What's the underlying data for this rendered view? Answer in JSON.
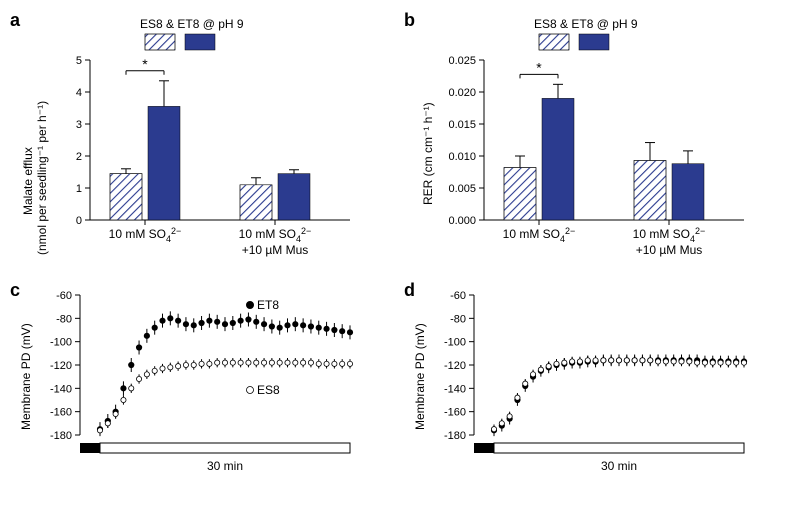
{
  "panels": {
    "a": {
      "label": "a",
      "legend_title": "ES8 & ET8 @ pH 9",
      "ylabel_line1": "Malate efflux",
      "ylabel_line2": "(nmol per seedling⁻¹ per h⁻¹)",
      "ymax": 5,
      "ytick_step": 1,
      "groups": [
        {
          "label_l1": "10 mM SO",
          "label_sub": "4",
          "label_sup": "2−",
          "es8": {
            "value": 1.45,
            "err": 0.15
          },
          "et8": {
            "value": 3.55,
            "err": 0.8
          },
          "sig": true
        },
        {
          "label_l1": "10 mM SO",
          "label_sub": "4",
          "label_sup": "2−",
          "label_l2": "+10 µM Mus",
          "es8": {
            "value": 1.1,
            "err": 0.22
          },
          "et8": {
            "value": 1.45,
            "err": 0.12
          },
          "sig": false
        }
      ],
      "colors": {
        "solid": "#2b3b8f",
        "hatch_stroke": "#2b3b8f"
      }
    },
    "b": {
      "label": "b",
      "legend_title": "ES8 & ET8 @ pH 9",
      "ylabel": "RER (cm cm⁻¹ h⁻¹)",
      "ymax": 0.025,
      "ytick_step": 0.005,
      "groups": [
        {
          "label_l1": "10 mM SO",
          "label_sub": "4",
          "label_sup": "2−",
          "es8": {
            "value": 0.0082,
            "err": 0.0018
          },
          "et8": {
            "value": 0.019,
            "err": 0.0022
          },
          "sig": true
        },
        {
          "label_l1": "10 mM SO",
          "label_sub": "4",
          "label_sup": "2−",
          "label_l2": "+10 µM Mus",
          "es8": {
            "value": 0.0093,
            "err": 0.0028
          },
          "et8": {
            "value": 0.0088,
            "err": 0.002
          },
          "sig": false
        }
      ]
    },
    "c": {
      "label": "c",
      "ylabel": "Membrane PD (mV)",
      "ylim": [
        -180,
        -60
      ],
      "ytick_step": 20,
      "xlabel": "30 min",
      "et8_label": "ET8",
      "es8_label": "ES8",
      "et8_marker": "filled",
      "es8_marker": "open",
      "et8": [
        [
          -2,
          -175
        ],
        [
          -1,
          -168
        ],
        [
          0,
          -160
        ],
        [
          1,
          -140
        ],
        [
          2,
          -120
        ],
        [
          3,
          -105
        ],
        [
          4,
          -95
        ],
        [
          5,
          -88
        ],
        [
          6,
          -82
        ],
        [
          7,
          -80
        ],
        [
          8,
          -82
        ],
        [
          9,
          -85
        ],
        [
          10,
          -86
        ],
        [
          11,
          -84
        ],
        [
          12,
          -82
        ],
        [
          13,
          -83
        ],
        [
          14,
          -85
        ],
        [
          15,
          -84
        ],
        [
          16,
          -82
        ],
        [
          17,
          -81
        ],
        [
          18,
          -83
        ],
        [
          19,
          -85
        ],
        [
          20,
          -87
        ],
        [
          21,
          -88
        ],
        [
          22,
          -86
        ],
        [
          23,
          -85
        ],
        [
          24,
          -86
        ],
        [
          25,
          -87
        ],
        [
          26,
          -88
        ],
        [
          27,
          -89
        ],
        [
          28,
          -90
        ],
        [
          29,
          -91
        ],
        [
          30,
          -92
        ]
      ],
      "et8_err": 6,
      "es8": [
        [
          -2,
          -176
        ],
        [
          -1,
          -170
        ],
        [
          0,
          -162
        ],
        [
          1,
          -150
        ],
        [
          2,
          -140
        ],
        [
          3,
          -132
        ],
        [
          4,
          -128
        ],
        [
          5,
          -125
        ],
        [
          6,
          -123
        ],
        [
          7,
          -122
        ],
        [
          8,
          -121
        ],
        [
          9,
          -120
        ],
        [
          10,
          -120
        ],
        [
          11,
          -119
        ],
        [
          12,
          -119
        ],
        [
          13,
          -118
        ],
        [
          14,
          -118
        ],
        [
          15,
          -118
        ],
        [
          16,
          -118
        ],
        [
          17,
          -118
        ],
        [
          18,
          -118
        ],
        [
          19,
          -118
        ],
        [
          20,
          -118
        ],
        [
          21,
          -118
        ],
        [
          22,
          -118
        ],
        [
          23,
          -118
        ],
        [
          24,
          -118
        ],
        [
          25,
          -118
        ],
        [
          26,
          -119
        ],
        [
          27,
          -119
        ],
        [
          28,
          -119
        ],
        [
          29,
          -119
        ],
        [
          30,
          -119
        ]
      ],
      "es8_err": 4
    },
    "d": {
      "label": "d",
      "ylabel": "Membrane PD (mV)",
      "ylim": [
        -180,
        -60
      ],
      "ytick_step": 20,
      "xlabel": "30 min",
      "et8": [
        [
          -2,
          -176
        ],
        [
          -1,
          -172
        ],
        [
          0,
          -166
        ],
        [
          1,
          -150
        ],
        [
          2,
          -138
        ],
        [
          3,
          -130
        ],
        [
          4,
          -125
        ],
        [
          5,
          -122
        ],
        [
          6,
          -120
        ],
        [
          7,
          -119
        ],
        [
          8,
          -118
        ],
        [
          9,
          -118
        ],
        [
          10,
          -117
        ],
        [
          11,
          -117
        ],
        [
          12,
          -116
        ],
        [
          13,
          -116
        ],
        [
          14,
          -116
        ],
        [
          15,
          -116
        ],
        [
          16,
          -116
        ],
        [
          17,
          -116
        ],
        [
          18,
          -116
        ],
        [
          19,
          -116
        ],
        [
          20,
          -116
        ],
        [
          21,
          -116
        ],
        [
          22,
          -116
        ],
        [
          23,
          -116
        ],
        [
          24,
          -116
        ],
        [
          25,
          -117
        ],
        [
          26,
          -117
        ],
        [
          27,
          -117
        ],
        [
          28,
          -117
        ],
        [
          29,
          -117
        ],
        [
          30,
          -117
        ]
      ],
      "et8_err": 5,
      "es8": [
        [
          -2,
          -175
        ],
        [
          -1,
          -170
        ],
        [
          0,
          -164
        ],
        [
          1,
          -148
        ],
        [
          2,
          -136
        ],
        [
          3,
          -128
        ],
        [
          4,
          -124
        ],
        [
          5,
          -121
        ],
        [
          6,
          -119
        ],
        [
          7,
          -118
        ],
        [
          8,
          -117
        ],
        [
          9,
          -117
        ],
        [
          10,
          -116
        ],
        [
          11,
          -116
        ],
        [
          12,
          -116
        ],
        [
          13,
          -116
        ],
        [
          14,
          -116
        ],
        [
          15,
          -116
        ],
        [
          16,
          -116
        ],
        [
          17,
          -116
        ],
        [
          18,
          -116
        ],
        [
          19,
          -117
        ],
        [
          20,
          -117
        ],
        [
          21,
          -117
        ],
        [
          22,
          -117
        ],
        [
          23,
          -117
        ],
        [
          24,
          -118
        ],
        [
          25,
          -118
        ],
        [
          26,
          -118
        ],
        [
          27,
          -118
        ],
        [
          28,
          -118
        ],
        [
          29,
          -118
        ],
        [
          30,
          -118
        ]
      ],
      "es8_err": 4
    }
  }
}
